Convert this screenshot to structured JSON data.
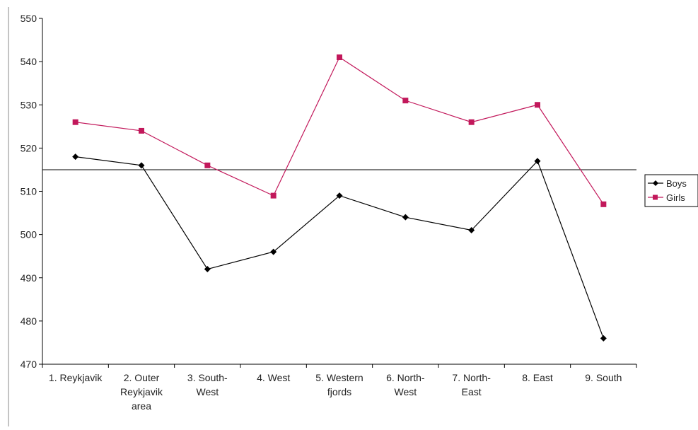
{
  "chart_data": {
    "type": "line",
    "title": "",
    "xlabel": "",
    "ylabel": "",
    "categories": [
      [
        "1. Reykjavik"
      ],
      [
        "2. Outer",
        "Reykjavik",
        "area"
      ],
      [
        "3. South-",
        "West"
      ],
      [
        "4. West"
      ],
      [
        "5. Western",
        "fjords"
      ],
      [
        "6. North-",
        "West"
      ],
      [
        "7. North-",
        "East"
      ],
      [
        "8. East"
      ],
      [
        "9. South"
      ]
    ],
    "ylim": [
      470,
      550
    ],
    "yticks": [
      470,
      480,
      490,
      500,
      510,
      520,
      530,
      540,
      550
    ],
    "grid": false,
    "reference_line": 515,
    "legend_position": "right",
    "series": [
      {
        "name": "Boys",
        "color": "#000000",
        "marker": "diamond",
        "values": [
          518,
          516,
          492,
          496,
          509,
          504,
          501,
          517,
          476
        ]
      },
      {
        "name": "Girls",
        "color": "#c2185b",
        "marker": "square",
        "values": [
          526,
          524,
          516,
          509,
          541,
          531,
          526,
          530,
          507
        ]
      }
    ]
  }
}
